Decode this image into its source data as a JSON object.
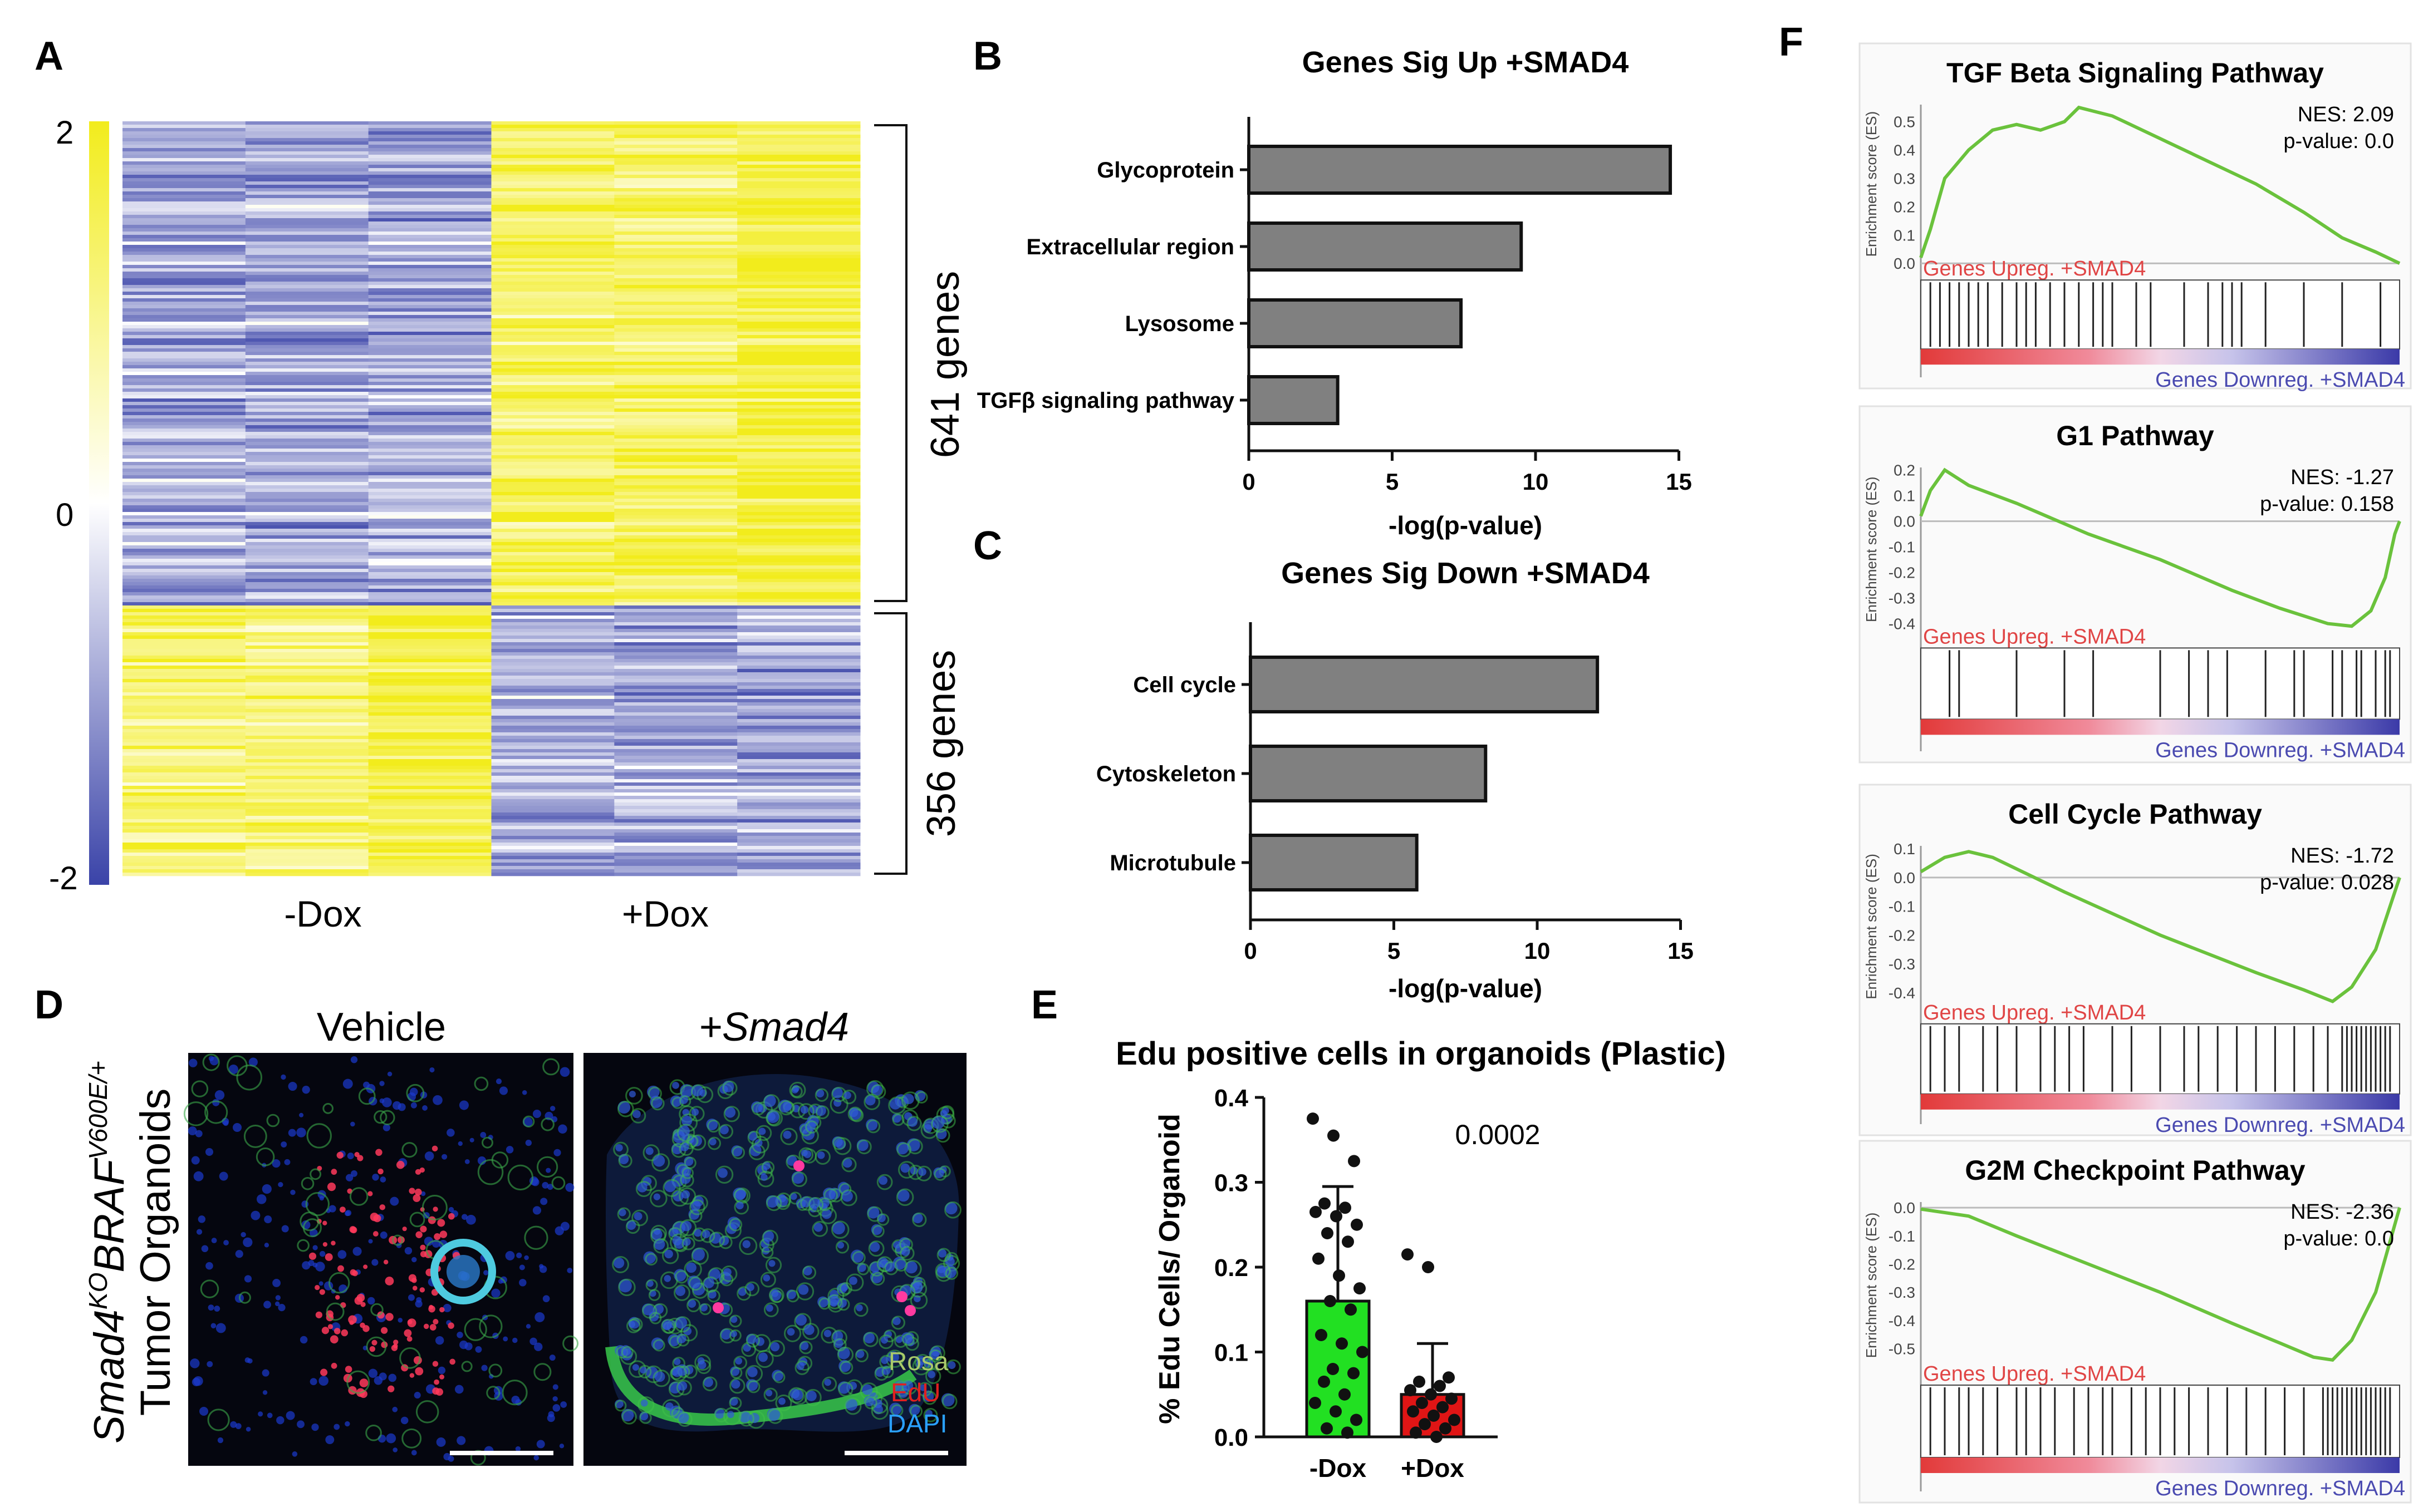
{
  "panel_labels": {
    "a": "A",
    "b": "B",
    "c": "C",
    "d": "D",
    "e": "E",
    "f": "F"
  },
  "panel_a": {
    "colorbar_ticks": [
      "2",
      "0",
      "-2"
    ],
    "group_labels": [
      "-Dox",
      "+Dox"
    ],
    "brackets": [
      "641 genes",
      "356 genes"
    ],
    "colors": {
      "high": "#f2ec1c",
      "mid": "#ffffff",
      "low": "#3a43a8"
    }
  },
  "chart_data": [
    {
      "id": "B",
      "type": "bar",
      "orientation": "horizontal",
      "title": "Genes Sig Up +SMAD4",
      "categories": [
        "Glycoprotein",
        "Extracellular region",
        "Lysosome",
        "TGFβ signaling pathway"
      ],
      "values": [
        14.7,
        9.5,
        7.4,
        3.1
      ],
      "xlabel": "-log(p-value)",
      "xlim": [
        0,
        15
      ],
      "xticks": [
        "0",
        "5",
        "10",
        "15"
      ]
    },
    {
      "id": "C",
      "type": "bar",
      "orientation": "horizontal",
      "title": "Genes Sig Down +SMAD4",
      "categories": [
        "Cell cycle",
        "Cytoskeleton",
        "Microtubule"
      ],
      "values": [
        12.1,
        8.2,
        5.8
      ],
      "xlabel": "-log(p-value)",
      "xlim": [
        0,
        15
      ],
      "xticks": [
        "0",
        "5",
        "10",
        "15"
      ]
    },
    {
      "id": "E",
      "type": "bar",
      "title": "Edu positive cells in organoids (Plastic)",
      "ylabel": "% Edu Cells/ Organoid",
      "categories": [
        "-Dox",
        "+Dox"
      ],
      "values": [
        0.16,
        0.05
      ],
      "error": [
        0.135,
        0.06
      ],
      "ylim": [
        0,
        0.4
      ],
      "yticks": [
        "0.0",
        "0.1",
        "0.2",
        "0.3",
        "0.4"
      ],
      "annotation": "0.0002",
      "colors": [
        "#22e022",
        "#e01515"
      ],
      "points": [
        [
          0.375,
          0.355,
          0.325,
          0.275,
          0.27,
          0.265,
          0.26,
          0.25,
          0.24,
          0.23,
          0.21,
          0.19,
          0.175,
          0.16,
          0.15,
          0.12,
          0.11,
          0.1,
          0.08,
          0.075,
          0.065,
          0.05,
          0.04,
          0.03,
          0.02,
          0.01,
          0.005
        ],
        [
          0.215,
          0.2,
          0.07,
          0.065,
          0.06,
          0.055,
          0.05,
          0.045,
          0.04,
          0.035,
          0.03,
          0.025,
          0.02,
          0.015,
          0.01,
          0.005,
          0.0
        ]
      ]
    }
  ],
  "panel_d": {
    "titles": [
      "Vehicle",
      "+Smad4"
    ],
    "side_label_1": "Smad4",
    "side_label_sup1": "KO",
    "side_label_2": "BRAF",
    "side_label_sup2": "V600E/+",
    "side_label_3": "Tumor Organoids",
    "legend": [
      {
        "text": "Rosa",
        "color": "#a9c96a"
      },
      {
        "text": "EdU",
        "color": "#e02020"
      },
      {
        "text": "DAPI",
        "color": "#2aa0ff"
      }
    ]
  },
  "panel_f": {
    "line_color": "#6ac23c",
    "ylabel": "Enrichment score (ES)",
    "left_text": "Genes Upreg. +SMAD4",
    "right_text": "Genes Downreg. +SMAD4",
    "plots": [
      {
        "title": "TGF Beta Signaling Pathway",
        "nes": "NES: 2.09",
        "pval": "p-value: 0.0",
        "yticks": [
          "0.5",
          "0.4",
          "0.3",
          "0.2",
          "0.1",
          "0.0"
        ]
      },
      {
        "title": "G1 Pathway",
        "nes": "NES: -1.27",
        "pval": "p-value: 0.158",
        "yticks": [
          "0.2",
          "0.1",
          "0.0",
          "-0.1",
          "-0.2",
          "-0.3",
          "-0.4"
        ]
      },
      {
        "title": "Cell Cycle Pathway",
        "nes": "NES: -1.72",
        "pval": "p-value: 0.028",
        "yticks": [
          "0.1",
          "0.0",
          "-0.1",
          "-0.2",
          "-0.3",
          "-0.4"
        ]
      },
      {
        "title": "G2M Checkpoint Pathway",
        "nes": "NES: -2.36",
        "pval": "p-value: 0.0",
        "yticks": [
          "0.0",
          "-0.1",
          "-0.2",
          "-0.3",
          "-0.4",
          "-0.5"
        ]
      }
    ]
  }
}
